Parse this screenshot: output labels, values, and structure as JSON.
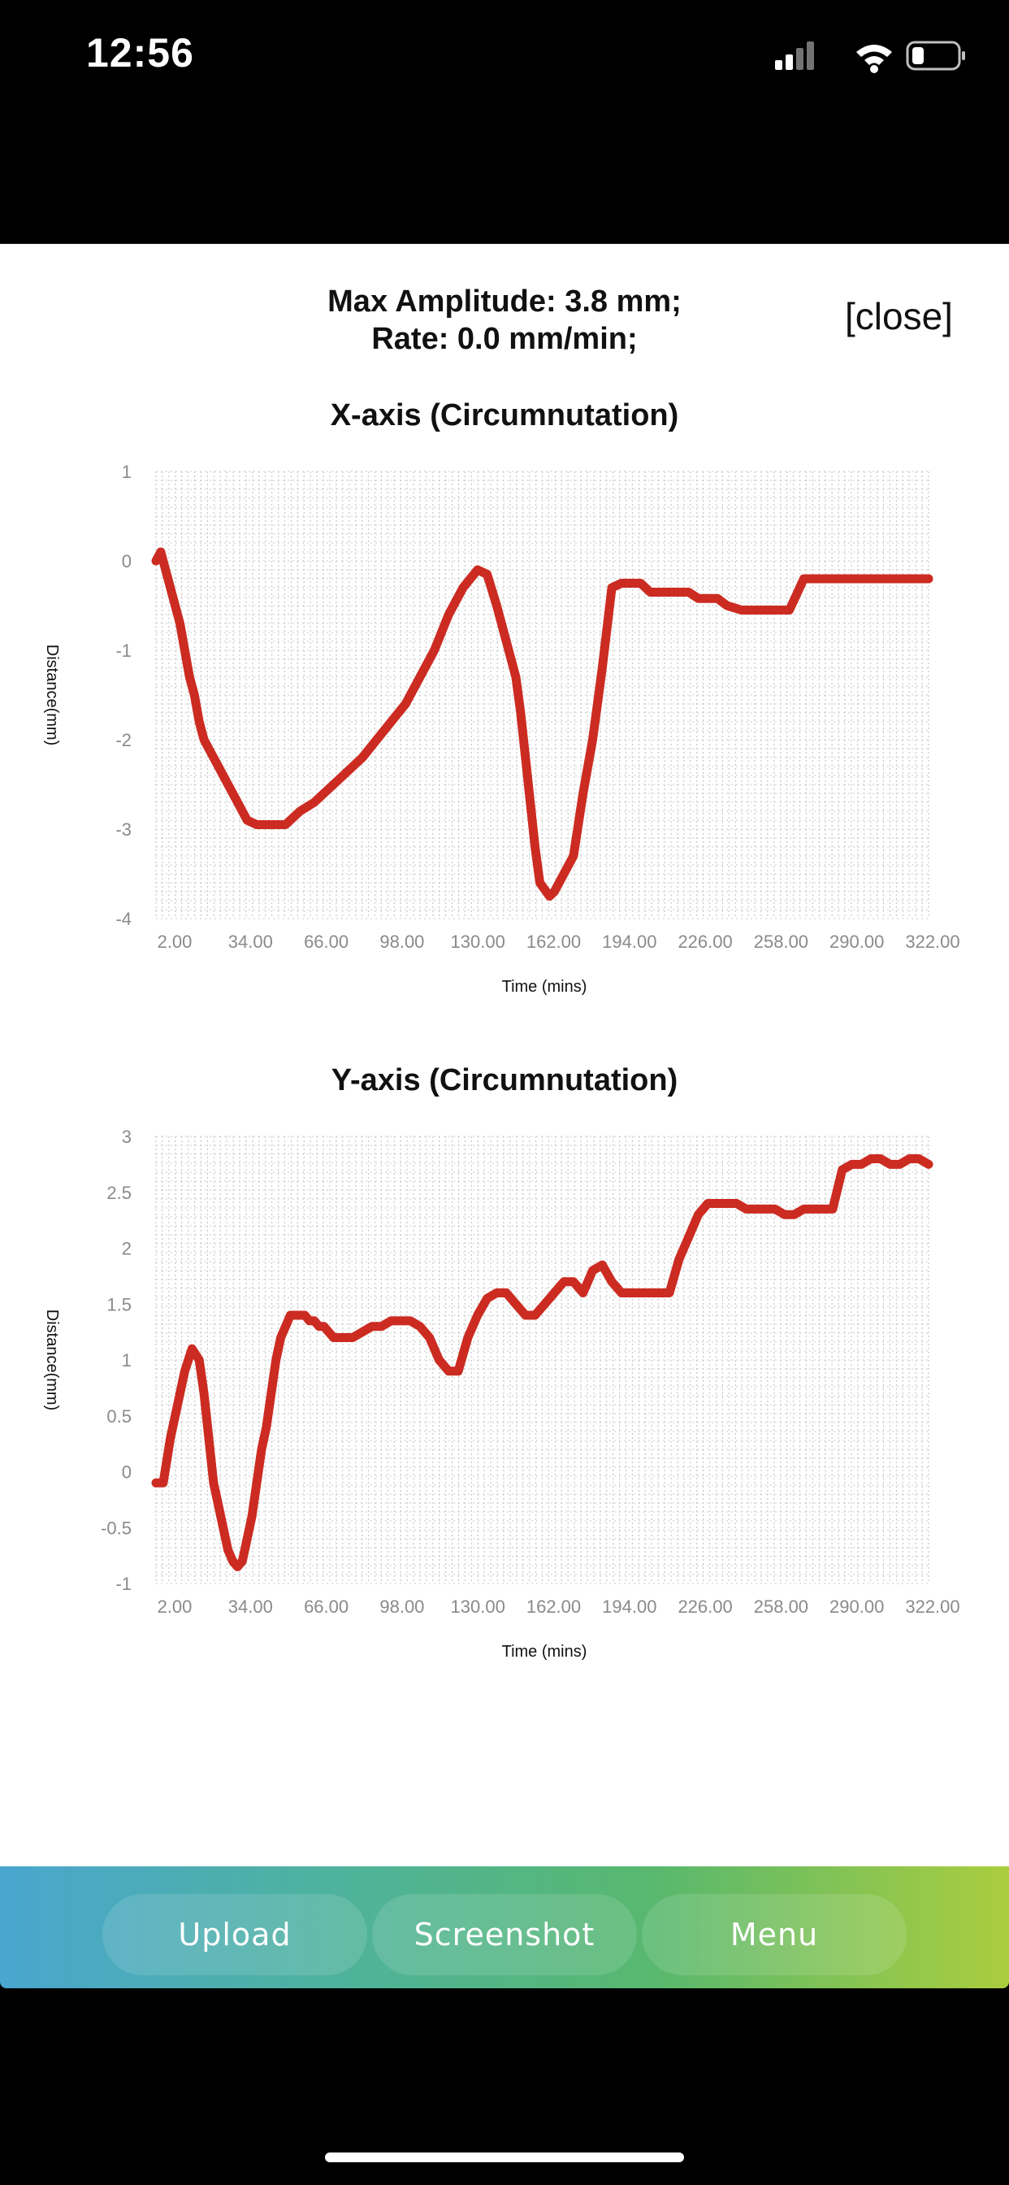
{
  "status_bar": {
    "time": "12:56"
  },
  "header": {
    "max_amplitude": "Max Amplitude: 3.8 mm;",
    "rate": "Rate: 0.0 mm/min;",
    "close_label": "[close]"
  },
  "bottom_bar": {
    "upload_label": "Upload",
    "screenshot_label": "Screenshot",
    "menu_label": "Menu"
  },
  "colors": {
    "line": "#cc2b22",
    "grid": "#c8c8c8",
    "tick_text": "#8a8a8a"
  },
  "chart_data": [
    {
      "type": "line",
      "title": "X-axis (Circumnutation)",
      "xlabel": "Time (mins)",
      "ylabel": "Distance(mm)",
      "x_tick_labels": [
        "2.00",
        "34.00",
        "66.00",
        "98.00",
        "130.00",
        "162.00",
        "194.00",
        "226.00",
        "258.00",
        "290.00",
        "322.00"
      ],
      "y_tick_labels": [
        "1",
        "0",
        "-1",
        "-2",
        "-3",
        "-4"
      ],
      "ylim": [
        -4,
        1
      ],
      "xlim": [
        0,
        322
      ],
      "grid": true,
      "series": [
        {
          "x": [
            0,
            2,
            4,
            6,
            8,
            10,
            12,
            14,
            16,
            18,
            20,
            22,
            24,
            26,
            28,
            30,
            34,
            38,
            42,
            46,
            50,
            54,
            60,
            66,
            70,
            74,
            80,
            86,
            92,
            98,
            104,
            110,
            116,
            122,
            128,
            134,
            138,
            142,
            146,
            150,
            152,
            154,
            156,
            158,
            160,
            164,
            166,
            170,
            174,
            178,
            182,
            186,
            190,
            194,
            198,
            202,
            206,
            210,
            214,
            218,
            222,
            226,
            230,
            234,
            238,
            244,
            250,
            258,
            264,
            270,
            276,
            282,
            288,
            294,
            300,
            302,
            306,
            312,
            318,
            322
          ],
          "y": [
            0.0,
            0.1,
            -0.1,
            -0.3,
            -0.5,
            -0.7,
            -1.0,
            -1.3,
            -1.5,
            -1.8,
            -2.0,
            -2.1,
            -2.2,
            -2.3,
            -2.4,
            -2.5,
            -2.7,
            -2.9,
            -2.95,
            -2.95,
            -2.95,
            -2.95,
            -2.8,
            -2.7,
            -2.6,
            -2.5,
            -2.35,
            -2.2,
            -2.0,
            -1.8,
            -1.6,
            -1.3,
            -1.0,
            -0.6,
            -0.3,
            -0.1,
            -0.15,
            -0.5,
            -0.9,
            -1.3,
            -1.7,
            -2.2,
            -2.7,
            -3.2,
            -3.6,
            -3.75,
            -3.7,
            -3.5,
            -3.3,
            -2.6,
            -2.0,
            -1.2,
            -0.3,
            -0.25,
            -0.25,
            -0.25,
            -0.35,
            -0.35,
            -0.35,
            -0.35,
            -0.35,
            -0.42,
            -0.42,
            -0.42,
            -0.5,
            -0.55,
            -0.55,
            -0.55,
            -0.55,
            -0.2,
            -0.2,
            -0.2,
            -0.2,
            -0.2,
            -0.2,
            -0.2,
            -0.2,
            -0.2,
            -0.2,
            -0.2
          ]
        }
      ]
    },
    {
      "type": "line",
      "title": "Y-axis (Circumnutation)",
      "xlabel": "Time (mins)",
      "ylabel": "Distance(mm)",
      "x_tick_labels": [
        "2.00",
        "34.00",
        "66.00",
        "98.00",
        "130.00",
        "162.00",
        "194.00",
        "226.00",
        "258.00",
        "290.00",
        "322.00"
      ],
      "y_tick_labels": [
        "3",
        "2.5",
        "2",
        "1.5",
        "1",
        "0.5",
        "0",
        "-0.5",
        "-1"
      ],
      "ylim": [
        -1,
        3
      ],
      "xlim": [
        0,
        322
      ],
      "grid": true,
      "series": [
        {
          "x": [
            0,
            3,
            6,
            9,
            12,
            15,
            18,
            20,
            22,
            24,
            26,
            28,
            30,
            32,
            34,
            36,
            38,
            40,
            42,
            44,
            46,
            48,
            50,
            52,
            54,
            56,
            58,
            60,
            62,
            64,
            66,
            68,
            70,
            74,
            78,
            82,
            86,
            90,
            94,
            98,
            102,
            106,
            110,
            114,
            118,
            122,
            126,
            130,
            134,
            138,
            142,
            146,
            150,
            154,
            158,
            162,
            166,
            170,
            174,
            178,
            182,
            186,
            190,
            194,
            198,
            202,
            206,
            210,
            214,
            218,
            222,
            226,
            230,
            234,
            238,
            242,
            246,
            250,
            254,
            258,
            262,
            266,
            270,
            274,
            278,
            282,
            286,
            290,
            294,
            298,
            302,
            306,
            310,
            314,
            318,
            322
          ],
          "y": [
            -0.1,
            -0.1,
            0.3,
            0.6,
            0.9,
            1.1,
            1.0,
            0.7,
            0.3,
            -0.1,
            -0.3,
            -0.5,
            -0.7,
            -0.8,
            -0.85,
            -0.8,
            -0.6,
            -0.4,
            -0.1,
            0.2,
            0.4,
            0.7,
            1.0,
            1.2,
            1.3,
            1.4,
            1.4,
            1.4,
            1.4,
            1.35,
            1.35,
            1.3,
            1.3,
            1.2,
            1.2,
            1.2,
            1.25,
            1.3,
            1.3,
            1.35,
            1.35,
            1.35,
            1.3,
            1.2,
            1.0,
            0.9,
            0.9,
            1.2,
            1.4,
            1.55,
            1.6,
            1.6,
            1.5,
            1.4,
            1.4,
            1.5,
            1.6,
            1.7,
            1.7,
            1.6,
            1.8,
            1.85,
            1.7,
            1.6,
            1.6,
            1.6,
            1.6,
            1.6,
            1.6,
            1.9,
            2.1,
            2.3,
            2.4,
            2.4,
            2.4,
            2.4,
            2.35,
            2.35,
            2.35,
            2.35,
            2.3,
            2.3,
            2.35,
            2.35,
            2.35,
            2.35,
            2.7,
            2.75,
            2.75,
            2.8,
            2.8,
            2.75,
            2.75,
            2.8,
            2.8,
            2.75
          ]
        }
      ]
    }
  ]
}
